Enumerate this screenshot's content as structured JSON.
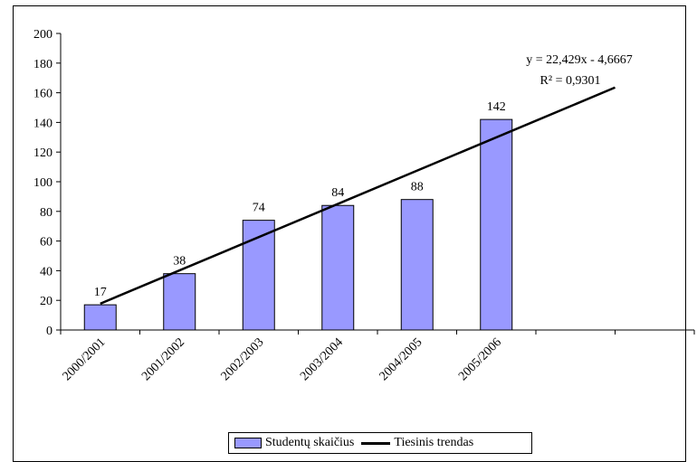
{
  "chart_data": {
    "type": "bar",
    "categories": [
      "2000/2001",
      "2001/2002",
      "2002/2003",
      "2003/2004",
      "2004/2005",
      "2005/2006",
      "",
      ""
    ],
    "series": [
      {
        "name": "Studentų skaičius",
        "values": [
          17,
          38,
          74,
          84,
          88,
          142,
          null,
          null
        ],
        "color": "#9999ff"
      }
    ],
    "trendline": {
      "name": "Tiesinis trendas",
      "type": "linear",
      "slope": 22.429,
      "intercept": -4.6667,
      "equation": "y = 22,429x - 4,6667",
      "r_squared": "R² = 0,9301",
      "color": "#000000"
    },
    "ylim": [
      0,
      200
    ],
    "yticks": [
      "0",
      "20",
      "40",
      "60",
      "80",
      "100",
      "120",
      "140",
      "160",
      "180",
      "200"
    ],
    "grid": false,
    "legend_position": "bottom",
    "title": "",
    "xlabel": "",
    "ylabel": ""
  }
}
